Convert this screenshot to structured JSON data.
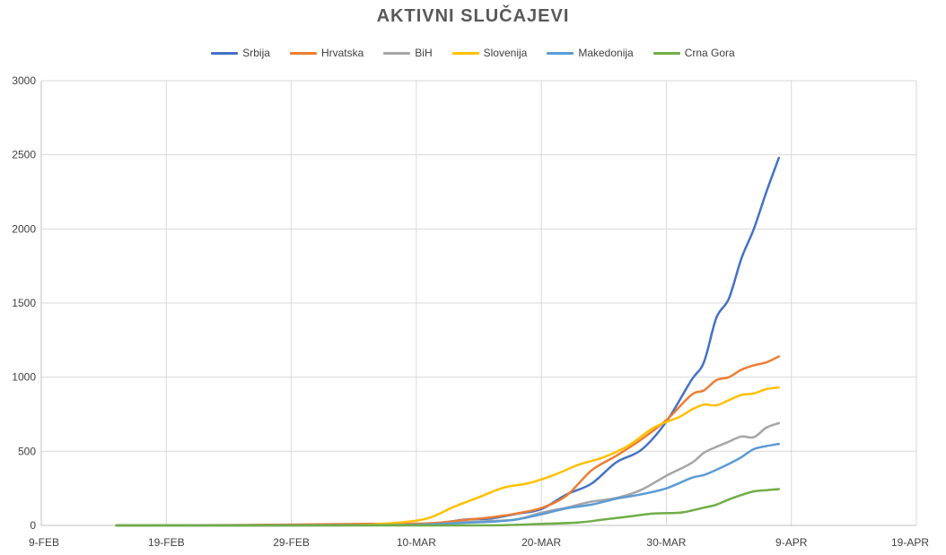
{
  "chart_data": {
    "type": "line",
    "title": "AKTIVNI SLUČAJEVI",
    "xlabel": "",
    "ylabel": "",
    "x_ticks": [
      "9-FEB",
      "19-FEB",
      "29-FEB",
      "10-MAR",
      "20-MAR",
      "30-MAR",
      "9-APR",
      "19-APR"
    ],
    "x_tick_dates": [
      "2020-02-09",
      "2020-02-19",
      "2020-02-29",
      "2020-03-10",
      "2020-03-20",
      "2020-03-30",
      "2020-04-09",
      "2020-04-19"
    ],
    "x_range": [
      "2020-02-09",
      "2020-04-19"
    ],
    "ylim": [
      0,
      3000
    ],
    "y_ticks": [
      "0",
      "500",
      "1000",
      "1500",
      "2000",
      "2500",
      "3000"
    ],
    "y_tick_values": [
      0,
      500,
      1000,
      1500,
      2000,
      2500,
      3000
    ],
    "grid": true,
    "legend_position": "top",
    "series": [
      {
        "name": "Srbija",
        "color": "#4472C4",
        "points": [
          [
            "2020-02-15",
            0
          ],
          [
            "2020-02-26",
            0
          ],
          [
            "2020-03-06",
            1
          ],
          [
            "2020-03-10",
            5
          ],
          [
            "2020-03-12",
            18
          ],
          [
            "2020-03-14",
            40
          ],
          [
            "2020-03-16",
            47
          ],
          [
            "2020-03-18",
            78
          ],
          [
            "2020-03-20",
            110
          ],
          [
            "2020-03-22",
            208
          ],
          [
            "2020-03-24",
            281
          ],
          [
            "2020-03-26",
            426
          ],
          [
            "2020-03-28",
            510
          ],
          [
            "2020-03-30",
            700
          ],
          [
            "2020-04-01",
            980
          ],
          [
            "2020-04-02",
            1100
          ],
          [
            "2020-04-03",
            1400
          ],
          [
            "2020-04-04",
            1530
          ],
          [
            "2020-04-05",
            1800
          ],
          [
            "2020-04-06",
            2000
          ],
          [
            "2020-04-07",
            2250
          ],
          [
            "2020-04-08",
            2480
          ]
        ]
      },
      {
        "name": "Hrvatska",
        "color": "#ED7D31",
        "points": [
          [
            "2020-02-15",
            0
          ],
          [
            "2020-02-25",
            3
          ],
          [
            "2020-03-06",
            10
          ],
          [
            "2020-03-10",
            12
          ],
          [
            "2020-03-12",
            20
          ],
          [
            "2020-03-14",
            38
          ],
          [
            "2020-03-16",
            55
          ],
          [
            "2020-03-18",
            80
          ],
          [
            "2020-03-20",
            118
          ],
          [
            "2020-03-22",
            200
          ],
          [
            "2020-03-24",
            370
          ],
          [
            "2020-03-26",
            470
          ],
          [
            "2020-03-28",
            580
          ],
          [
            "2020-03-30",
            710
          ],
          [
            "2020-04-01",
            880
          ],
          [
            "2020-04-02",
            910
          ],
          [
            "2020-04-03",
            980
          ],
          [
            "2020-04-04",
            1000
          ],
          [
            "2020-04-05",
            1050
          ],
          [
            "2020-04-06",
            1080
          ],
          [
            "2020-04-07",
            1100
          ],
          [
            "2020-04-08",
            1140
          ]
        ]
      },
      {
        "name": "BiH",
        "color": "#A5A5A5",
        "points": [
          [
            "2020-02-15",
            0
          ],
          [
            "2020-03-06",
            2
          ],
          [
            "2020-03-10",
            5
          ],
          [
            "2020-03-12",
            10
          ],
          [
            "2020-03-14",
            22
          ],
          [
            "2020-03-16",
            30
          ],
          [
            "2020-03-18",
            40
          ],
          [
            "2020-03-20",
            85
          ],
          [
            "2020-03-22",
            120
          ],
          [
            "2020-03-24",
            160
          ],
          [
            "2020-03-26",
            185
          ],
          [
            "2020-03-28",
            240
          ],
          [
            "2020-03-30",
            335
          ],
          [
            "2020-04-01",
            420
          ],
          [
            "2020-04-02",
            490
          ],
          [
            "2020-04-03",
            530
          ],
          [
            "2020-04-04",
            565
          ],
          [
            "2020-04-05",
            600
          ],
          [
            "2020-04-06",
            595
          ],
          [
            "2020-04-07",
            660
          ],
          [
            "2020-04-08",
            690
          ]
        ]
      },
      {
        "name": "Slovenija",
        "color": "#FFC000",
        "points": [
          [
            "2020-02-15",
            0
          ],
          [
            "2020-03-04",
            2
          ],
          [
            "2020-03-07",
            10
          ],
          [
            "2020-03-09",
            22
          ],
          [
            "2020-03-11",
            50
          ],
          [
            "2020-03-13",
            125
          ],
          [
            "2020-03-15",
            190
          ],
          [
            "2020-03-17",
            255
          ],
          [
            "2020-03-19",
            285
          ],
          [
            "2020-03-21",
            340
          ],
          [
            "2020-03-23",
            410
          ],
          [
            "2020-03-25",
            460
          ],
          [
            "2020-03-27",
            540
          ],
          [
            "2020-03-29",
            660
          ],
          [
            "2020-03-31",
            730
          ],
          [
            "2020-04-01",
            780
          ],
          [
            "2020-04-02",
            815
          ],
          [
            "2020-04-03",
            810
          ],
          [
            "2020-04-04",
            845
          ],
          [
            "2020-04-05",
            880
          ],
          [
            "2020-04-06",
            890
          ],
          [
            "2020-04-07",
            920
          ],
          [
            "2020-04-08",
            930
          ]
        ]
      },
      {
        "name": "Makedonija",
        "color": "#5B9BD5",
        "points": [
          [
            "2020-02-15",
            0
          ],
          [
            "2020-03-06",
            2
          ],
          [
            "2020-03-10",
            5
          ],
          [
            "2020-03-12",
            10
          ],
          [
            "2020-03-14",
            18
          ],
          [
            "2020-03-16",
            25
          ],
          [
            "2020-03-18",
            40
          ],
          [
            "2020-03-20",
            75
          ],
          [
            "2020-03-22",
            115
          ],
          [
            "2020-03-24",
            140
          ],
          [
            "2020-03-26",
            180
          ],
          [
            "2020-03-28",
            210
          ],
          [
            "2020-03-30",
            250
          ],
          [
            "2020-04-01",
            320
          ],
          [
            "2020-04-02",
            340
          ],
          [
            "2020-04-03",
            375
          ],
          [
            "2020-04-04",
            415
          ],
          [
            "2020-04-05",
            460
          ],
          [
            "2020-04-06",
            515
          ],
          [
            "2020-04-07",
            535
          ],
          [
            "2020-04-08",
            550
          ]
        ]
      },
      {
        "name": "Crna Gora",
        "color": "#70AD47",
        "points": [
          [
            "2020-02-15",
            0
          ],
          [
            "2020-03-12",
            0
          ],
          [
            "2020-03-17",
            2
          ],
          [
            "2020-03-20",
            10
          ],
          [
            "2020-03-23",
            20
          ],
          [
            "2020-03-25",
            40
          ],
          [
            "2020-03-27",
            60
          ],
          [
            "2020-03-29",
            80
          ],
          [
            "2020-03-31",
            85
          ],
          [
            "2020-04-01",
            100
          ],
          [
            "2020-04-02",
            120
          ],
          [
            "2020-04-03",
            140
          ],
          [
            "2020-04-04",
            175
          ],
          [
            "2020-04-05",
            205
          ],
          [
            "2020-04-06",
            230
          ],
          [
            "2020-04-07",
            238
          ],
          [
            "2020-04-08",
            245
          ]
        ]
      }
    ]
  }
}
